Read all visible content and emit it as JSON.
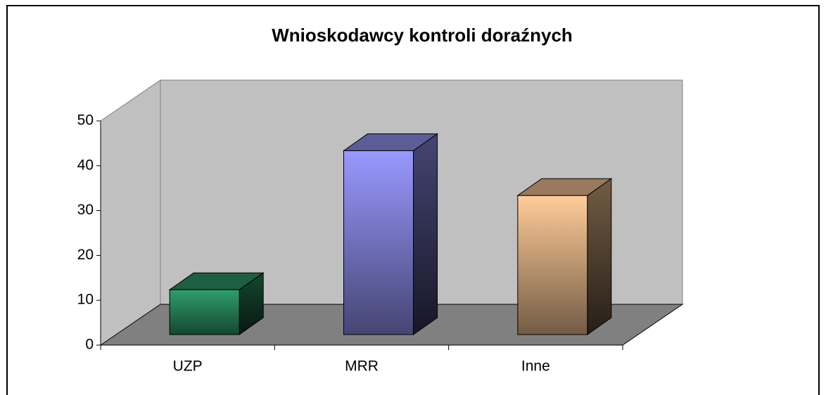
{
  "chart_data": {
    "type": "bar3d",
    "title": "Wnioskodawcy kontroli doraźnych",
    "categories": [
      "UZP",
      "MRR",
      "Inne"
    ],
    "values": [
      10,
      41,
      31
    ],
    "colors": [
      "#2e9e6c",
      "#9999ff",
      "#ffcc99"
    ],
    "ylim": [
      0,
      50
    ],
    "yticks": [
      0,
      10,
      20,
      30,
      40,
      50
    ]
  }
}
